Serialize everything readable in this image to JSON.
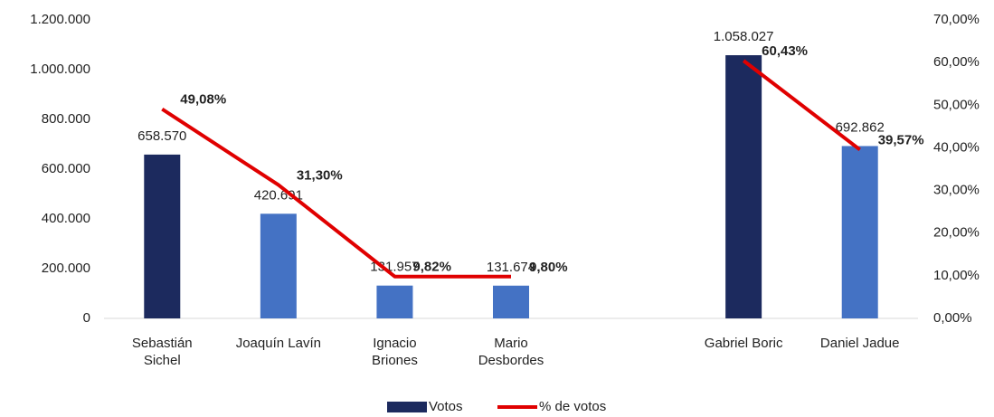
{
  "chart_data": {
    "type": "bar",
    "categories": [
      "Sebastián Sichel",
      "Joaquín Lavín",
      "Ignacio Briones",
      "Mario Desbordes",
      null,
      "Gabriel Boric",
      "Daniel Jadue"
    ],
    "series": [
      {
        "name": "Votos",
        "type": "bar",
        "color": "#1c2a5e",
        "colors": [
          "#1c2a5e",
          "#4472c4",
          "#4472c4",
          "#4472c4",
          null,
          "#1c2a5e",
          "#4472c4"
        ],
        "values": [
          658570,
          420691,
          131957,
          131674,
          null,
          1058027,
          692862
        ],
        "value_labels": [
          "658.570",
          "420.691",
          "131.957",
          "131.674",
          null,
          "1.058.027",
          "692.862"
        ]
      },
      {
        "name": "% de votos",
        "type": "line",
        "axis": "y2",
        "color": "#e00000",
        "values": [
          49.08,
          31.3,
          9.82,
          9.8,
          null,
          60.43,
          39.57
        ],
        "value_labels": [
          "49,08%",
          "31,30%",
          "9,82%",
          "9,80%",
          null,
          "60,43%",
          "39,57%"
        ]
      }
    ],
    "ylim": [
      0,
      1200000
    ],
    "yticks": [
      0,
      {
        "value": 200000,
        "label": "200.000"
      },
      {
        "value": 400000,
        "label": "400.000"
      },
      {
        "value": 600000,
        "label": "600.000"
      },
      {
        "value": 800000,
        "label": "800.000"
      },
      {
        "value": 1000000,
        "label": "1.000.000"
      },
      {
        "value": 1200000,
        "label": "1.200.000"
      }
    ],
    "y2lim": [
      0,
      70
    ],
    "y2ticks": [
      {
        "value": 0,
        "label": "0,00%"
      },
      {
        "value": 10,
        "label": "10,00%"
      },
      {
        "value": 20,
        "label": "20,00%"
      },
      {
        "value": 30,
        "label": "30,00%"
      },
      {
        "value": 40,
        "label": "40,00%"
      },
      {
        "value": 50,
        "label": "50,00%"
      },
      {
        "value": 60,
        "label": "60,00%"
      },
      {
        "value": 70,
        "label": "70,00%"
      }
    ],
    "grid": false,
    "legend": "bottom"
  }
}
